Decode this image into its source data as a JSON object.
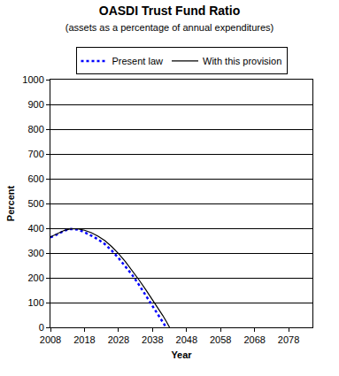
{
  "chart_data": {
    "type": "line",
    "title": "OASDI Trust Fund Ratio",
    "subtitle": "(assets as a percentage of annual expenditures)",
    "x_label": "Year",
    "y_label": "Percent",
    "x": [
      2008,
      2010,
      2012,
      2014,
      2016,
      2018,
      2020,
      2022,
      2024,
      2026,
      2028,
      2030,
      2032,
      2034,
      2036,
      2038,
      2040,
      2041,
      2042,
      2043
    ],
    "series": [
      {
        "name": "Present law",
        "color": "#0000ff",
        "line_style": "dot",
        "values": [
          363,
          375,
          390,
          397,
          395,
          384,
          370,
          355,
          336,
          310,
          280,
          248,
          212,
          172,
          130,
          88,
          45,
          22,
          0,
          null
        ]
      },
      {
        "name": "With this provision",
        "color": "#000000",
        "line_style": "solid",
        "values": [
          365,
          377,
          391,
          398,
          398,
          392,
          382,
          368,
          350,
          326,
          298,
          266,
          230,
          192,
          152,
          112,
          70,
          48,
          25,
          0
        ]
      }
    ],
    "xlim": [
      2008,
      2085
    ],
    "xticks": [
      2008,
      2018,
      2028,
      2038,
      2048,
      2058,
      2068,
      2078
    ],
    "ylim": [
      0,
      1000
    ],
    "yticks": [
      0,
      100,
      200,
      300,
      400,
      500,
      600,
      700,
      800,
      900,
      1000
    ],
    "grid": true,
    "legend": "top"
  }
}
